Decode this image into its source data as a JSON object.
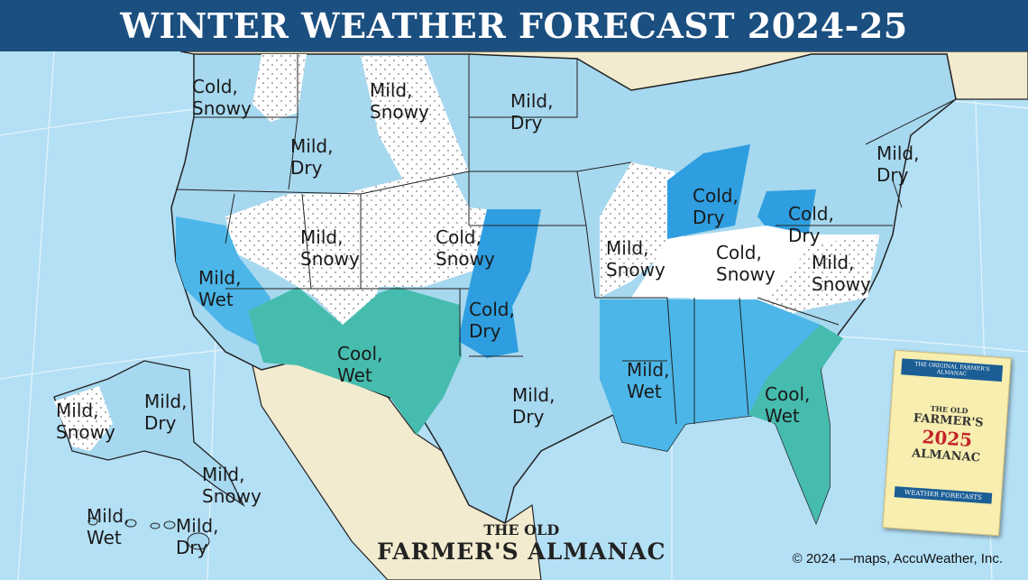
{
  "title": "WINTER WEATHER FORECAST 2024-25",
  "colors": {
    "ocean": "#b4e0f6",
    "land_other": "#f2ebcf",
    "mild_light_blue": "#a6d8ef",
    "wet_blue": "#4cb6e8",
    "cold_dry_blue": "#2f9ee0",
    "cool_wet_teal": "#46bcae",
    "snowy_white": "#ffffff",
    "title_bar": "#1b4f80"
  },
  "regions": [
    {
      "label": [
        "Cold,",
        "Snowy"
      ]
    },
    {
      "label": [
        "Mild,",
        "Snowy"
      ]
    },
    {
      "label": [
        "Mild,",
        "Dry"
      ]
    },
    {
      "label": [
        "Mild,",
        "Dry"
      ]
    },
    {
      "label": [
        "Mild,",
        "Snowy"
      ]
    },
    {
      "label": [
        "Cold,",
        "Snowy"
      ]
    },
    {
      "label": [
        "Mild,",
        "Wet"
      ]
    },
    {
      "label": [
        "Cold,",
        "Dry"
      ]
    },
    {
      "label": [
        "Cool,",
        "Wet"
      ]
    },
    {
      "label": [
        "Mild,",
        "Dry"
      ]
    },
    {
      "label": [
        "Mild,",
        "Snowy"
      ]
    },
    {
      "label": [
        "Cold,",
        "Dry"
      ]
    },
    {
      "label": [
        "Cold,",
        "Dry"
      ]
    },
    {
      "label": [
        "Cold,",
        "Snowy"
      ]
    },
    {
      "label": [
        "Mild,",
        "Snowy"
      ]
    },
    {
      "label": [
        "Mild,",
        "Dry"
      ]
    },
    {
      "label": [
        "Mild,",
        "Wet"
      ]
    },
    {
      "label": [
        "Cool,",
        "Wet"
      ]
    },
    {
      "label": [
        "Mild,",
        "Snowy"
      ]
    },
    {
      "label": [
        "Mild,",
        "Dry"
      ]
    },
    {
      "label": [
        "Mild,",
        "Snowy"
      ]
    },
    {
      "label": [
        "Mild,",
        "Wet"
      ]
    },
    {
      "label": [
        "Mild,",
        "Dry"
      ]
    }
  ],
  "logo": {
    "line1": "THE OLD",
    "line2": "FARMER'S ALMANAC"
  },
  "credit": "© 2024 —maps, AccuWeather, Inc.",
  "cover": {
    "top_band": "THE ORIGINAL FARMER'S ALMANAC",
    "line1": "THE OLD",
    "line2": "FARMER'S",
    "year": "2025",
    "line3": "ALMANAC",
    "bottom_band": "WEATHER FORECASTS"
  }
}
